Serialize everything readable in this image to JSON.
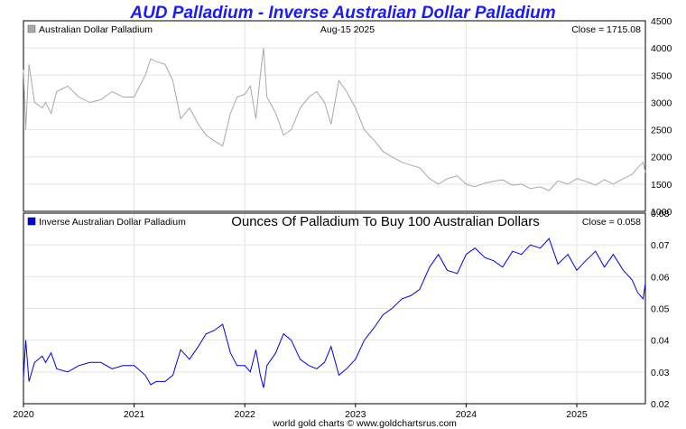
{
  "title": "AUD Palladium - Inverse Australian Dollar Palladium",
  "footer": "world gold charts © www.goldchartsrus.com",
  "colors": {
    "top_series": "#a8a8a8",
    "bottom_series": "#0000e6",
    "title": "#1a1aff",
    "grid": "#e4e4e4"
  },
  "chart_data": [
    {
      "type": "line",
      "legend": "Australian Dollar Palladium",
      "date_label": "Aug-15  2025",
      "close_label": "Close = 1715.08",
      "ylim": [
        1000,
        4500
      ],
      "yticks": [
        1000,
        1500,
        2000,
        2500,
        3000,
        3500,
        4000,
        4500
      ],
      "grid": true,
      "legend_position": "top-left",
      "series": [
        {
          "x": [
            2020.0,
            2020.02,
            2020.05,
            2020.1,
            2020.17,
            2020.2,
            2020.25,
            2020.3,
            2020.4,
            2020.5,
            2020.6,
            2020.7,
            2020.8,
            2020.9,
            2021.0,
            2021.1,
            2021.15,
            2021.2,
            2021.28,
            2021.35,
            2021.42,
            2021.5,
            2021.58,
            2021.65,
            2021.72,
            2021.8,
            2021.87,
            2021.93,
            2022.0,
            2022.05,
            2022.1,
            2022.14,
            2022.17,
            2022.2,
            2022.28,
            2022.35,
            2022.42,
            2022.5,
            2022.58,
            2022.65,
            2022.72,
            2022.78,
            2022.85,
            2022.92,
            2023.0,
            2023.08,
            2023.17,
            2023.25,
            2023.33,
            2023.42,
            2023.5,
            2023.58,
            2023.67,
            2023.75,
            2023.83,
            2023.92,
            2024.0,
            2024.08,
            2024.17,
            2024.25,
            2024.33,
            2024.42,
            2024.5,
            2024.58,
            2024.67,
            2024.75,
            2024.83,
            2024.92,
            2025.0,
            2025.08,
            2025.17,
            2025.25,
            2025.33,
            2025.42,
            2025.5,
            2025.55,
            2025.6,
            2025.62
          ],
          "y": [
            3600,
            2500,
            3700,
            3000,
            2900,
            3000,
            2800,
            3200,
            3300,
            3100,
            3000,
            3050,
            3200,
            3100,
            3100,
            3500,
            3800,
            3750,
            3700,
            3400,
            2700,
            2900,
            2600,
            2400,
            2300,
            2200,
            2800,
            3100,
            3150,
            3300,
            2700,
            3500,
            4000,
            3100,
            2800,
            2400,
            2500,
            2900,
            3100,
            3200,
            3000,
            2600,
            3400,
            3200,
            2900,
            2500,
            2300,
            2100,
            2000,
            1900,
            1850,
            1800,
            1600,
            1500,
            1600,
            1650,
            1500,
            1450,
            1520,
            1550,
            1580,
            1480,
            1500,
            1420,
            1450,
            1380,
            1560,
            1500,
            1600,
            1550,
            1480,
            1580,
            1500,
            1600,
            1680,
            1800,
            1900,
            1715
          ]
        }
      ]
    },
    {
      "type": "line",
      "legend": "Inverse Australian Dollar Palladium",
      "subtitle": "Ounces Of Palladium To Buy 100 Australian Dollars",
      "close_label": "Close = 0.058",
      "ylim": [
        0.02,
        0.08
      ],
      "yticks": [
        "0.02",
        "0.03",
        "0.04",
        "0.05",
        "0.06",
        "0.07",
        "0.08"
      ],
      "xticks": [
        "2020",
        "2021",
        "2022",
        "2023",
        "2024",
        "2025"
      ],
      "grid": true,
      "legend_position": "top-left",
      "series": [
        {
          "x": [
            2020.0,
            2020.02,
            2020.05,
            2020.1,
            2020.17,
            2020.2,
            2020.25,
            2020.3,
            2020.4,
            2020.5,
            2020.6,
            2020.7,
            2020.8,
            2020.9,
            2021.0,
            2021.1,
            2021.15,
            2021.2,
            2021.28,
            2021.35,
            2021.42,
            2021.5,
            2021.58,
            2021.65,
            2021.72,
            2021.8,
            2021.87,
            2021.93,
            2022.0,
            2022.05,
            2022.1,
            2022.14,
            2022.17,
            2022.2,
            2022.28,
            2022.35,
            2022.42,
            2022.5,
            2022.58,
            2022.65,
            2022.72,
            2022.78,
            2022.85,
            2022.92,
            2023.0,
            2023.08,
            2023.17,
            2023.25,
            2023.33,
            2023.42,
            2023.5,
            2023.58,
            2023.67,
            2023.75,
            2023.83,
            2023.92,
            2024.0,
            2024.08,
            2024.17,
            2024.25,
            2024.33,
            2024.42,
            2024.5,
            2024.58,
            2024.67,
            2024.75,
            2024.83,
            2024.92,
            2025.0,
            2025.08,
            2025.17,
            2025.25,
            2025.33,
            2025.42,
            2025.5,
            2025.55,
            2025.6,
            2025.62
          ],
          "y": [
            0.028,
            0.04,
            0.027,
            0.033,
            0.035,
            0.033,
            0.036,
            0.031,
            0.03,
            0.032,
            0.033,
            0.033,
            0.031,
            0.032,
            0.032,
            0.029,
            0.026,
            0.027,
            0.027,
            0.029,
            0.037,
            0.034,
            0.038,
            0.042,
            0.043,
            0.045,
            0.036,
            0.032,
            0.032,
            0.03,
            0.037,
            0.029,
            0.025,
            0.032,
            0.036,
            0.042,
            0.04,
            0.034,
            0.032,
            0.031,
            0.033,
            0.038,
            0.029,
            0.031,
            0.034,
            0.04,
            0.044,
            0.048,
            0.05,
            0.053,
            0.054,
            0.056,
            0.063,
            0.067,
            0.062,
            0.061,
            0.067,
            0.069,
            0.066,
            0.065,
            0.063,
            0.068,
            0.067,
            0.07,
            0.069,
            0.072,
            0.064,
            0.067,
            0.062,
            0.065,
            0.068,
            0.063,
            0.067,
            0.062,
            0.059,
            0.055,
            0.053,
            0.058
          ]
        }
      ]
    }
  ]
}
